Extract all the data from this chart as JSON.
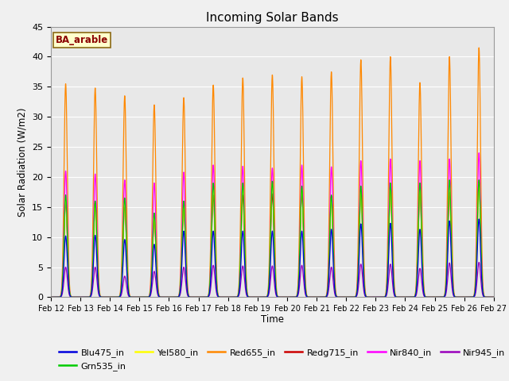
{
  "title": "Incoming Solar Bands",
  "xlabel": "Time",
  "ylabel": "Solar Radiation (W/m2)",
  "annotation": "BA_arable",
  "ylim": [
    0,
    45
  ],
  "xtick_labels": [
    "Feb 12",
    "Feb 13",
    "Feb 14",
    "Feb 15",
    "Feb 16",
    "Feb 17",
    "Feb 18",
    "Feb 19",
    "Feb 20",
    "Feb 21",
    "Feb 22",
    "Feb 23",
    "Feb 24",
    "Feb 25",
    "Feb 26",
    "Feb 27"
  ],
  "legend_entries": [
    "Blu475_in",
    "Grn535_in",
    "Yel580_in",
    "Red655_in",
    "Redg715_in",
    "Nir840_in",
    "Nir945_in"
  ],
  "colors": {
    "Blu475_in": "#0000dd",
    "Grn535_in": "#00cc00",
    "Yel580_in": "#ffff00",
    "Red655_in": "#ff8800",
    "Redg715_in": "#cc0000",
    "Nir840_in": "#ff00ff",
    "Nir945_in": "#9900bb"
  },
  "legend_colors": [
    "#0000dd",
    "#00cc00",
    "#ffff00",
    "#ff8800",
    "#cc0000",
    "#ff00ff",
    "#9900bb"
  ],
  "bg_color": "#e8e8e8",
  "grid_color": "#ffffff",
  "peaks": {
    "Red655_in": [
      35.5,
      34.8,
      33.5,
      32.0,
      33.2,
      35.3,
      36.5,
      37.0,
      36.7,
      37.5,
      39.5,
      40.0,
      35.7,
      40.0,
      41.5
    ],
    "Nir840_in": [
      21.0,
      20.5,
      19.5,
      19.0,
      20.8,
      22.0,
      21.8,
      21.5,
      22.0,
      21.7,
      22.7,
      23.0,
      22.7,
      23.0,
      24.0
    ],
    "Redg715_in": [
      16.0,
      15.7,
      15.5,
      13.0,
      15.2,
      17.0,
      17.0,
      17.2,
      17.3,
      16.8,
      18.0,
      18.5,
      17.5,
      17.5,
      19.2
    ],
    "Grn535_in": [
      17.0,
      16.0,
      16.5,
      14.0,
      16.0,
      19.0,
      19.0,
      19.3,
      18.5,
      17.0,
      18.5,
      19.0,
      19.0,
      19.5,
      19.5
    ],
    "Yel580_in": [
      16.5,
      15.5,
      16.0,
      13.5,
      15.5,
      18.5,
      18.5,
      19.0,
      18.0,
      16.5,
      18.0,
      18.5,
      18.5,
      19.0,
      19.0
    ],
    "Blu475_in": [
      10.2,
      10.3,
      9.6,
      8.8,
      11.0,
      11.0,
      11.0,
      11.0,
      11.0,
      11.3,
      12.2,
      12.3,
      11.3,
      12.7,
      13.0
    ],
    "Nir945_in": [
      5.0,
      5.0,
      3.5,
      4.3,
      5.0,
      5.3,
      5.2,
      5.2,
      5.3,
      5.0,
      5.5,
      5.5,
      4.8,
      5.7,
      5.8
    ]
  }
}
